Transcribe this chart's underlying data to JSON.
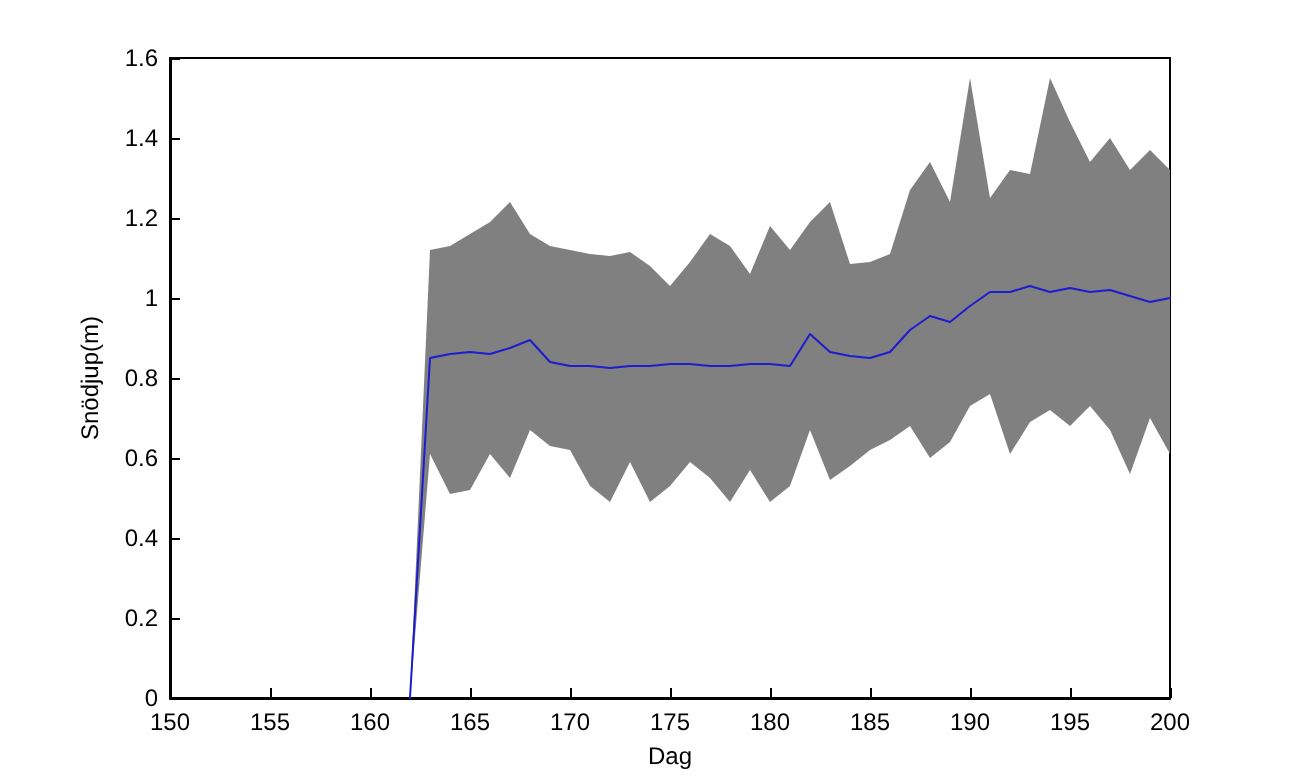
{
  "chart_data": {
    "type": "line",
    "xlabel": "Dag",
    "ylabel": "Snödjup(m)",
    "x": [
      162,
      163,
      164,
      165,
      166,
      167,
      168,
      169,
      170,
      171,
      172,
      173,
      174,
      175,
      176,
      177,
      178,
      179,
      180,
      181,
      182,
      183,
      184,
      185,
      186,
      187,
      188,
      189,
      190,
      191,
      192,
      193,
      194,
      195,
      196,
      197,
      198,
      199,
      200
    ],
    "series": [
      {
        "color": "#1c1cd0",
        "values": [
          0,
          0.85,
          0.86,
          0.865,
          0.86,
          0.875,
          0.895,
          0.84,
          0.83,
          0.83,
          0.825,
          0.83,
          0.83,
          0.835,
          0.835,
          0.83,
          0.83,
          0.835,
          0.835,
          0.83,
          0.91,
          0.865,
          0.855,
          0.85,
          0.865,
          0.92,
          0.955,
          0.94,
          0.98,
          1.015,
          1.015,
          1.03,
          1.015,
          1.025,
          1.015,
          1.02,
          1.005,
          0.99,
          1.0
        ],
        "lower": [
          0,
          0.61,
          0.51,
          0.52,
          0.61,
          0.55,
          0.67,
          0.63,
          0.62,
          0.53,
          0.49,
          0.59,
          0.49,
          0.53,
          0.59,
          0.55,
          0.49,
          0.57,
          0.49,
          0.53,
          0.67,
          0.545,
          0.58,
          0.62,
          0.645,
          0.68,
          0.6,
          0.64,
          0.73,
          0.76,
          0.61,
          0.69,
          0.72,
          0.68,
          0.73,
          0.67,
          0.56,
          0.7,
          0.61
        ],
        "upper": [
          0,
          1.12,
          1.13,
          1.16,
          1.19,
          1.24,
          1.16,
          1.13,
          1.12,
          1.11,
          1.105,
          1.115,
          1.08,
          1.03,
          1.09,
          1.16,
          1.13,
          1.06,
          1.18,
          1.12,
          1.19,
          1.24,
          1.085,
          1.09,
          1.11,
          1.27,
          1.34,
          1.24,
          1.55,
          1.25,
          1.32,
          1.31,
          1.55,
          1.44,
          1.34,
          1.4,
          1.32,
          1.37,
          1.32
        ]
      }
    ],
    "xlim": [
      150,
      200
    ],
    "xticks": [
      150,
      155,
      160,
      165,
      170,
      175,
      180,
      185,
      190,
      195,
      200
    ],
    "ylim": [
      0,
      1.6
    ],
    "yticks": [
      0,
      0.2,
      0.4,
      0.6,
      0.8,
      1,
      1.2,
      1.4,
      1.6
    ],
    "grid": false,
    "marker": "none",
    "line_style": "solid"
  }
}
